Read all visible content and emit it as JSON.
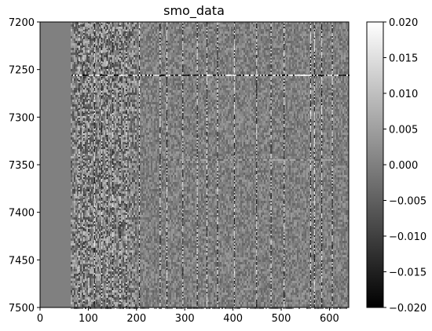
{
  "chart_data": {
    "type": "heatmap",
    "title": "smo_data",
    "xlabel": "",
    "ylabel": "",
    "xlim": [
      0,
      640
    ],
    "ylim": [
      7500,
      7200
    ],
    "x_ticks": [
      "0",
      "100",
      "200",
      "300",
      "400",
      "500",
      "600"
    ],
    "x_tick_values": [
      0,
      100,
      200,
      300,
      400,
      500,
      600
    ],
    "y_ticks": [
      "7200",
      "7250",
      "7300",
      "7350",
      "7400",
      "7450",
      "7500"
    ],
    "y_tick_values": [
      7200,
      7250,
      7300,
      7350,
      7400,
      7450,
      7500
    ],
    "colormap": "gray",
    "colorbar": {
      "vmin": -0.02,
      "vmax": 0.02,
      "ticks": [
        "0.020",
        "0.015",
        "0.010",
        "0.005",
        "0.000",
        "−0.005",
        "−0.010",
        "−0.015",
        "−0.020"
      ],
      "tick_values": [
        0.02,
        0.015,
        0.01,
        0.005,
        0.0,
        -0.005,
        -0.01,
        -0.015,
        -0.02
      ]
    },
    "background_value": 0.0,
    "quiet_region_x": [
      0,
      65
    ],
    "noisy_region_x": [
      65,
      640
    ],
    "bright_vertical_traces_x": [
      80,
      90,
      100,
      112,
      127,
      138,
      150,
      165,
      178,
      205,
      248,
      262,
      295,
      325,
      345,
      367,
      402,
      448,
      478,
      505,
      560,
      568,
      583,
      605
    ],
    "horizontal_events": [
      {
        "y": 7256,
        "x_range": [
          65,
          640
        ],
        "amplitude": 0.02
      },
      {
        "y": 7345,
        "x_range": [
          250,
          600
        ],
        "amplitude": 0.008
      }
    ]
  }
}
